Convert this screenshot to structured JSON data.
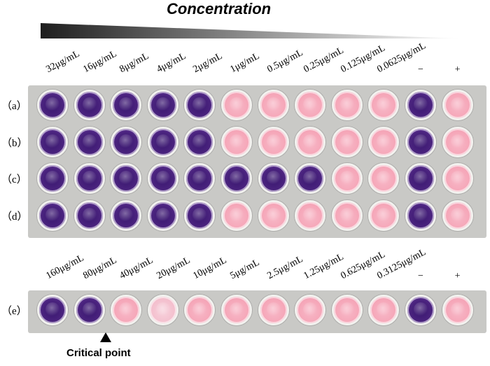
{
  "title": "Concentration",
  "critical_point_label": "Critical point",
  "colors": {
    "purple": "#4a237e",
    "pink": "#f5a6b8",
    "light_pink": "#f3bccb",
    "gradient_dark": "#1e1e1e",
    "gradient_light": "#ffffff"
  },
  "plate_top": {
    "concentrations": [
      "32μg/mL",
      "16μg/mL",
      "8μg/mL",
      "4μg/mL",
      "2μg/mL",
      "1μg/mL",
      "0.5μg/mL",
      "0.25μg/mL",
      "0.125μg/mL",
      "0.0625μg/mL",
      "−",
      "+"
    ],
    "rows": [
      {
        "label": "（a）",
        "wells": [
          "purple",
          "purple",
          "purple",
          "purple",
          "purple",
          "pink",
          "pink",
          "pink",
          "pink",
          "pink",
          "purple",
          "pink"
        ]
      },
      {
        "label": "（b）",
        "wells": [
          "purple",
          "purple",
          "purple",
          "purple",
          "purple",
          "pink",
          "pink",
          "pink",
          "pink",
          "pink",
          "purple",
          "pink"
        ]
      },
      {
        "label": "（c）",
        "wells": [
          "purple",
          "purple",
          "purple",
          "purple",
          "purple",
          "purple",
          "purple",
          "purple",
          "pink",
          "pink",
          "purple",
          "pink"
        ]
      },
      {
        "label": "（d）",
        "wells": [
          "purple",
          "purple",
          "purple",
          "purple",
          "purple",
          "pink",
          "pink",
          "pink",
          "pink",
          "pink",
          "purple",
          "pink"
        ]
      }
    ]
  },
  "plate_bottom": {
    "concentrations": [
      "160μg/mL",
      "80μg/mL",
      "40μg/mL",
      "20μg/mL",
      "10μg/mL",
      "5μg/mL",
      "2.5μg/mL",
      "1.25μg/mL",
      "0.625μg/mL",
      "0.3125μg/mL",
      "−",
      "+"
    ],
    "rows": [
      {
        "label": "（e）",
        "wells": [
          "purple",
          "purple",
          "pink",
          "light_pink",
          "pink",
          "pink",
          "pink",
          "pink",
          "pink",
          "pink",
          "purple",
          "pink"
        ]
      }
    ]
  }
}
